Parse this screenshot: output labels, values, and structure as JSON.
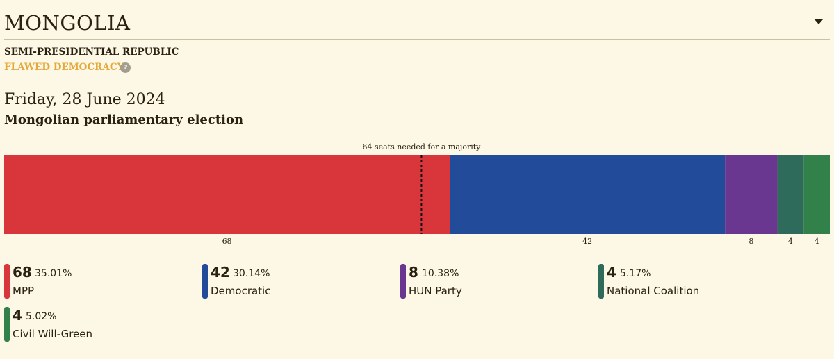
{
  "country": "MONGOLIA",
  "government": "SEMI-PRESIDENTIAL REPUBLIC",
  "democracy": "FLAWED DEMOCRACY",
  "help_glyph": "?",
  "date": "Friday, 28 June 2024",
  "election_title": "Mongolian parliamentary election",
  "colors": {
    "flawed_democracy": "#e5a93a"
  },
  "chart_data": {
    "type": "bar",
    "orientation": "horizontal-stacked",
    "total_seats": 126,
    "majority_seats": 64,
    "majority_label": "64 seats needed for a majority",
    "series": [
      {
        "name": "MPP",
        "seats": 68,
        "seats_label": "68",
        "pct": "35.01%",
        "color": "#d9363b"
      },
      {
        "name": "Democratic",
        "seats": 42,
        "seats_label": "42",
        "pct": "30.14%",
        "color": "#224b99"
      },
      {
        "name": "HUN Party",
        "seats": 8,
        "seats_label": "8",
        "pct": "10.38%",
        "color": "#6a3790"
      },
      {
        "name": "National Coalition",
        "seats": 4,
        "seats_label": "4",
        "pct": "5.17%",
        "color": "#2e6b5a"
      },
      {
        "name": "Civil Will-Green",
        "seats": 4,
        "seats_label": "4",
        "pct": "5.02%",
        "color": "#32804a"
      }
    ]
  }
}
